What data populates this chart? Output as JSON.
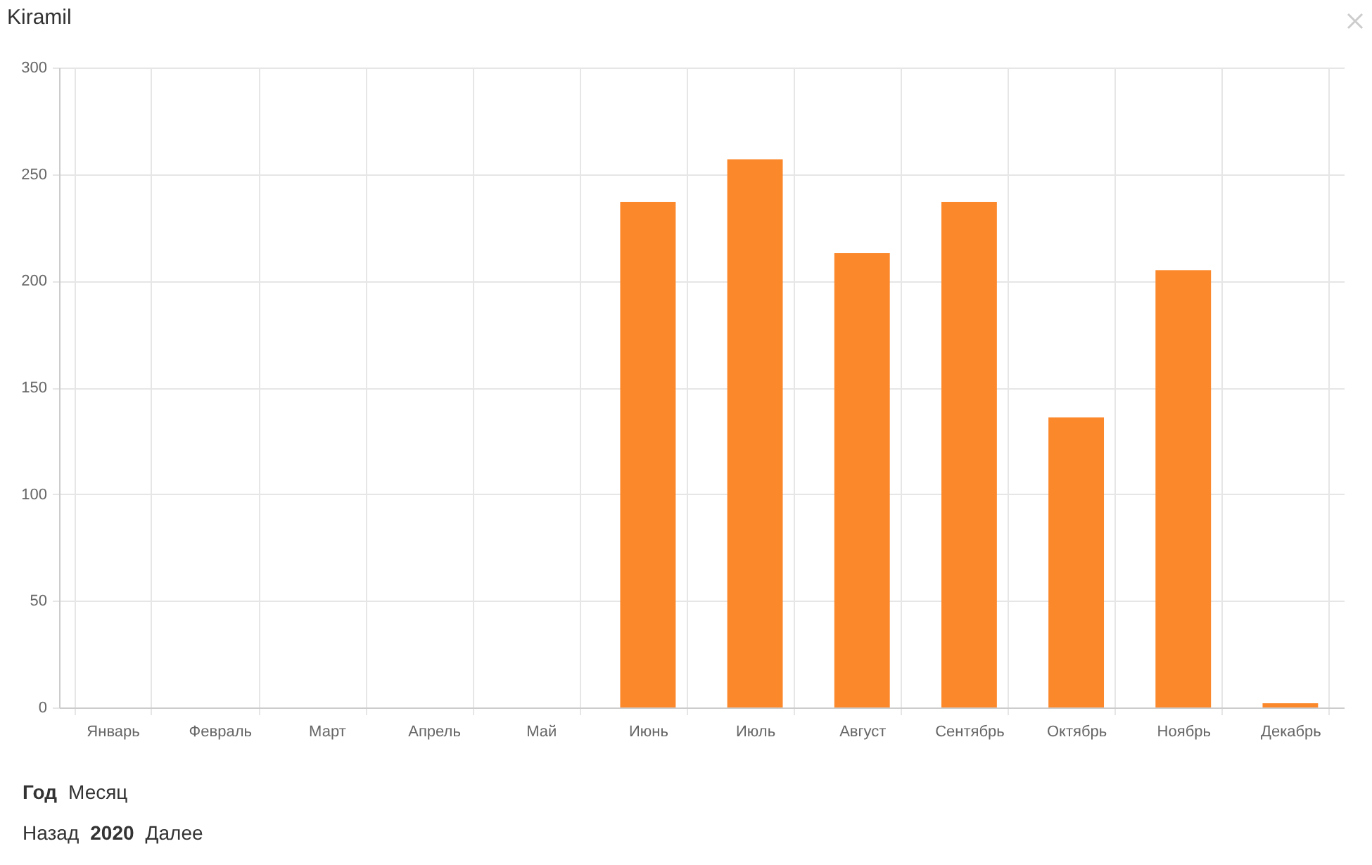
{
  "chart_data": {
    "type": "bar",
    "title": "Kiramil",
    "categories": [
      "Январь",
      "Февраль",
      "Март",
      "Апрель",
      "Май",
      "Июнь",
      "Июль",
      "Август",
      "Сентябрь",
      "Октябрь",
      "Ноябрь",
      "Декабрь"
    ],
    "values": [
      0,
      0,
      0,
      0,
      0,
      237,
      257,
      213,
      237,
      136,
      205,
      2
    ],
    "color": "#fc882c",
    "ylim": [
      0,
      300
    ],
    "yticks": [
      0,
      50,
      100,
      150,
      200,
      250,
      300
    ],
    "grid": true,
    "annotations": [
      "Год",
      "Месяц",
      "Назад",
      "2020",
      "Далее"
    ]
  }
}
